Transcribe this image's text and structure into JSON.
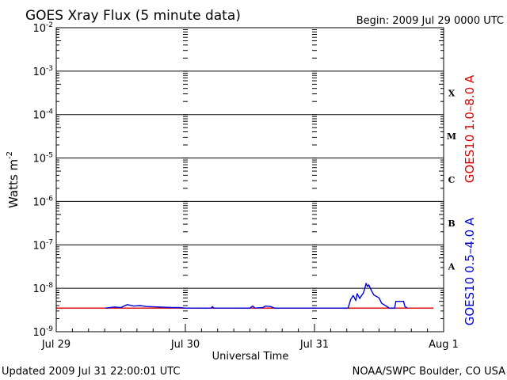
{
  "header": {
    "title": "GOES Xray Flux (5 minute data)",
    "begin": "Begin:  2009 Jul 29 0000 UTC"
  },
  "footer": {
    "updated": "Updated 2009 Jul 31 22:00:01 UTC",
    "credit": "NOAA/SWPC Boulder, CO USA"
  },
  "chart_data": {
    "type": "line",
    "title": "GOES Xray Flux (5 minute data)",
    "xlabel": "Universal Time",
    "ylabel": "Watts m",
    "ylabel_superscript": "-2",
    "x_unit": "days since 2009 Jul 29 0000 UTC",
    "xlim": [
      0,
      3
    ],
    "ylim": [
      1e-09,
      0.01
    ],
    "y_scale": "log",
    "x_ticks": [
      {
        "x": 0,
        "label": "Jul 29"
      },
      {
        "x": 1,
        "label": "Jul 30"
      },
      {
        "x": 2,
        "label": "Jul 31"
      },
      {
        "x": 3,
        "label": "Aug 1"
      }
    ],
    "y_ticks": [
      {
        "exp": -9,
        "value": 1e-09
      },
      {
        "exp": -8,
        "value": 1e-08
      },
      {
        "exp": -7,
        "value": 1e-07
      },
      {
        "exp": -6,
        "value": 1e-06
      },
      {
        "exp": -5,
        "value": 1e-05
      },
      {
        "exp": -4,
        "value": 0.0001
      },
      {
        "exp": -3,
        "value": 0.001
      },
      {
        "exp": -2,
        "value": 0.01
      }
    ],
    "flare_classes": [
      {
        "label": "X",
        "low": 0.0001,
        "high": 0.001
      },
      {
        "label": "M",
        "low": 1e-05,
        "high": 0.0001
      },
      {
        "label": "C",
        "low": 1e-06,
        "high": 1e-05
      },
      {
        "label": "B",
        "low": 1e-07,
        "high": 1e-06
      },
      {
        "label": "A",
        "low": 1e-08,
        "high": 1e-07
      }
    ],
    "grid": true,
    "series": [
      {
        "name": "GOES10 1.0–8.0 A",
        "color": "#dd0000",
        "x": [
          0,
          0.5,
          1.0,
          1.5,
          2.0,
          2.5,
          2.92
        ],
        "y": [
          3.5e-09,
          3.5e-09,
          3.5e-09,
          3.5e-09,
          3.5e-09,
          3.5e-09,
          3.5e-09
        ]
      },
      {
        "name": "GOES10 0.5–4.0 A",
        "color": "#0000dd",
        "x": [
          0.38,
          0.45,
          0.5,
          0.55,
          0.6,
          0.65,
          0.7,
          0.8,
          0.9,
          0.95,
          1.0,
          1.2,
          1.21,
          1.22,
          1.5,
          1.52,
          1.54,
          1.6,
          1.62,
          1.66,
          1.69,
          1.78,
          2.26,
          2.28,
          2.3,
          2.32,
          2.33,
          2.35,
          2.36,
          2.38,
          2.4,
          2.41,
          2.42,
          2.44,
          2.46,
          2.5,
          2.52,
          2.55,
          2.58,
          2.6,
          2.62,
          2.63,
          2.69,
          2.7,
          2.72
        ],
        "y": [
          3.5e-09,
          3.7e-09,
          3.6e-09,
          4.2e-09,
          3.9e-09,
          4e-09,
          3.8e-09,
          3.7e-09,
          3.6e-09,
          3.6e-09,
          3.5e-09,
          3.5e-09,
          3.8e-09,
          3.5e-09,
          3.5e-09,
          3.9e-09,
          3.5e-09,
          3.6e-09,
          3.9e-09,
          3.8e-09,
          3.5e-09,
          3.5e-09,
          3.5e-09,
          5.5e-09,
          6.8e-09,
          5.2e-09,
          7.5e-09,
          5.8e-09,
          6.5e-09,
          7.9e-09,
          1.3e-08,
          1.1e-08,
          1.2e-08,
          9e-09,
          7e-09,
          6e-09,
          4.5e-09,
          4e-09,
          3.5e-09,
          3.5e-09,
          3.5e-09,
          5e-09,
          5e-09,
          3.8e-09,
          3.5e-09
        ]
      }
    ]
  }
}
